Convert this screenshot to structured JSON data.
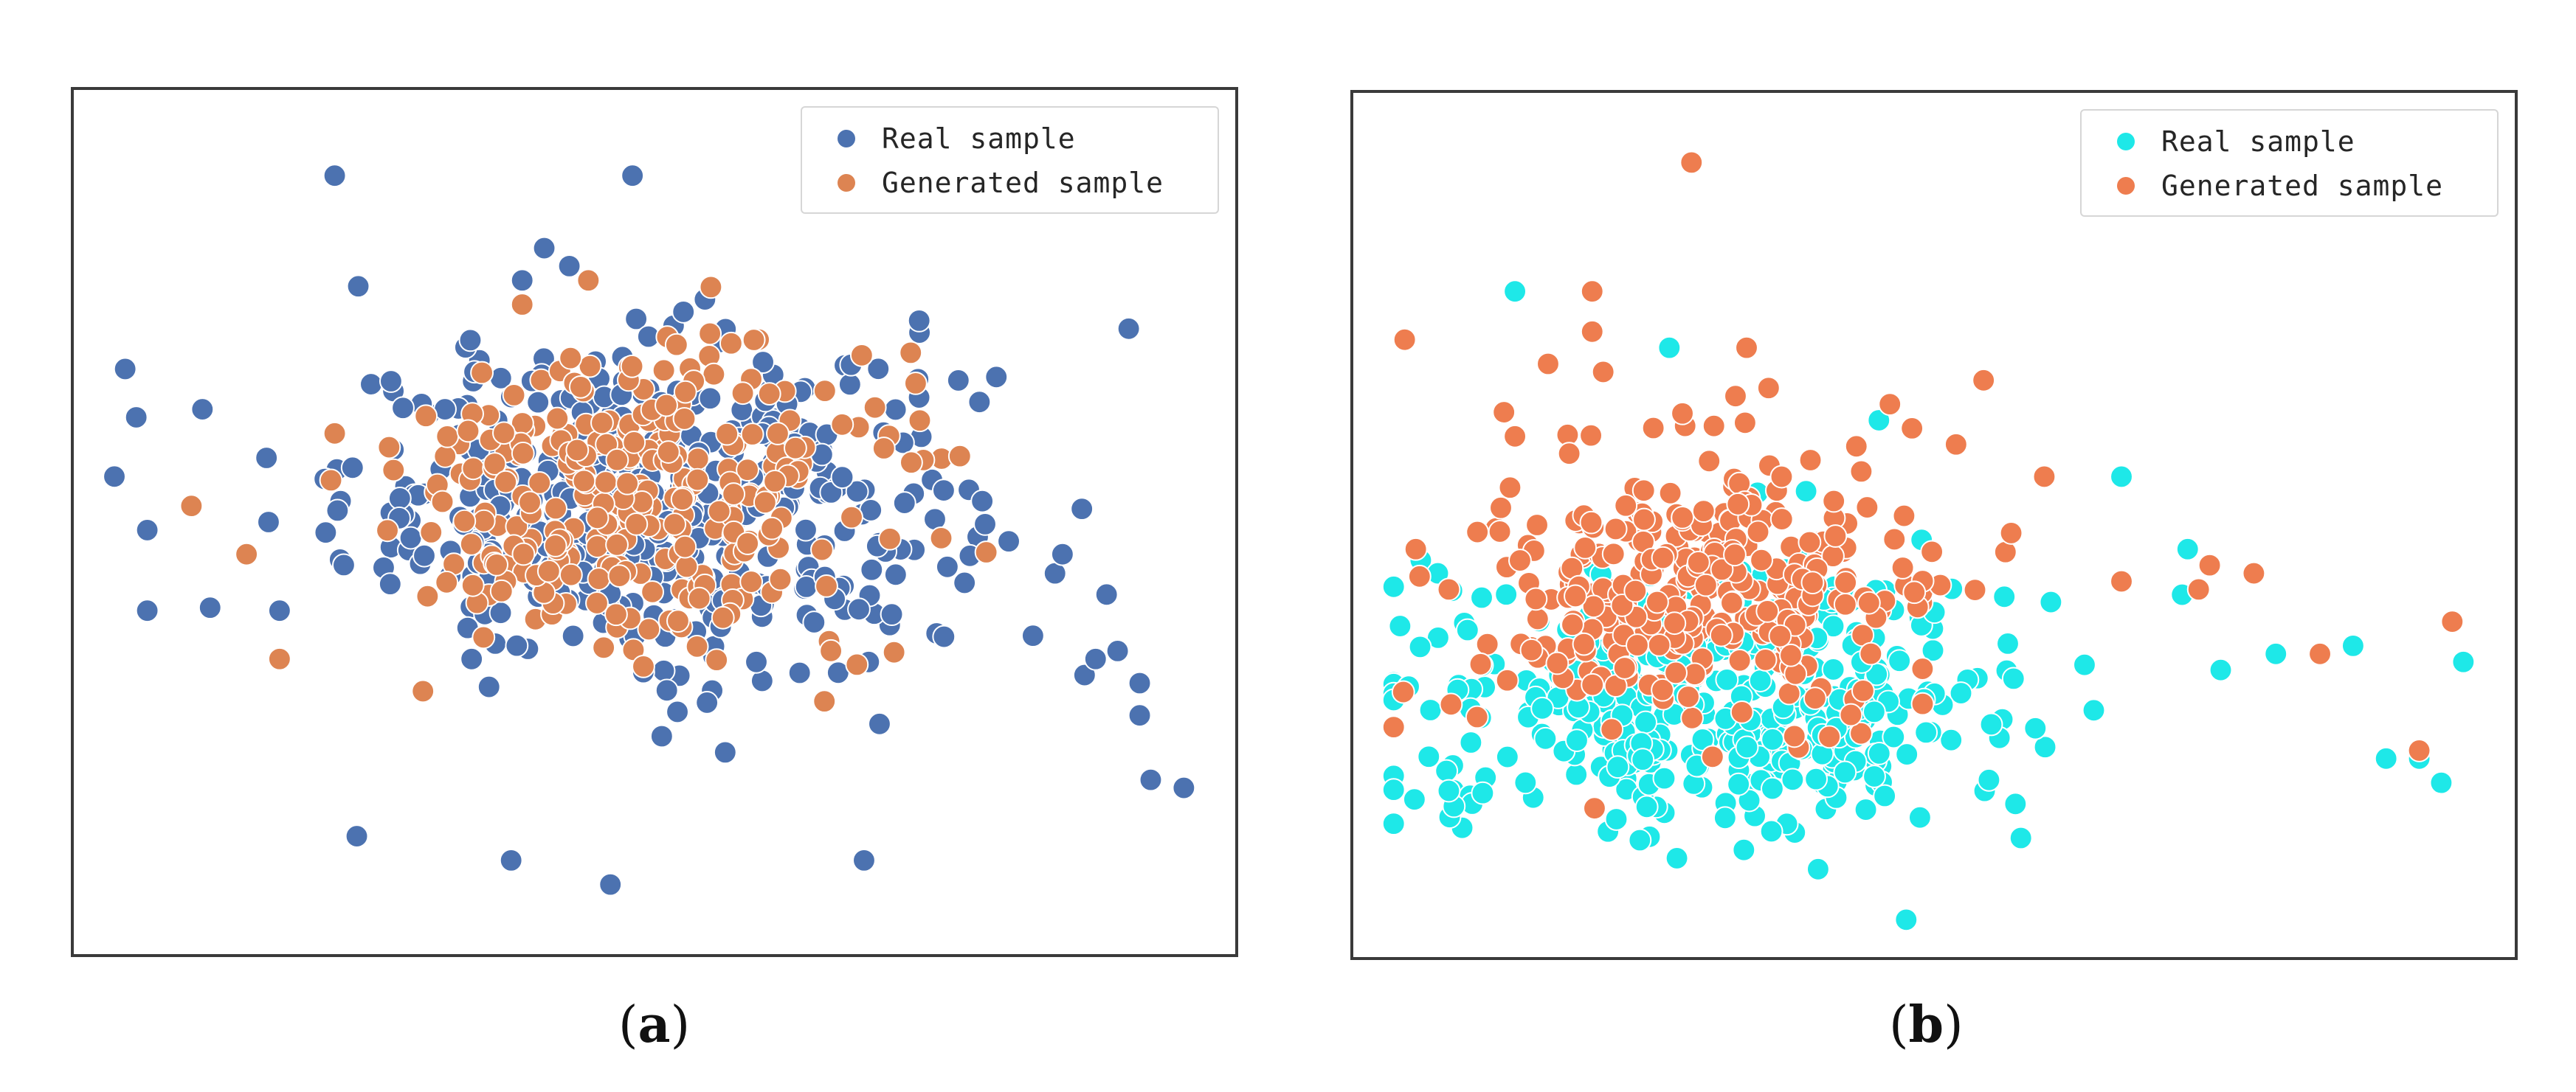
{
  "colors": {
    "a_real": "#4C72B0",
    "a_generated": "#DD8452",
    "b_real": "#1EE8E8",
    "b_generated": "#EE7D4F"
  },
  "chart_data": [
    {
      "type": "scatter",
      "panel_label": "a",
      "caption_open": "(",
      "caption_close": ")",
      "title": "",
      "xlabel": "",
      "ylabel": "",
      "axes_ticks_visible": false,
      "grid": false,
      "legend_position": "top-right",
      "xlim": [
        0,
        100
      ],
      "ylim": [
        0,
        100
      ],
      "series": [
        {
          "name": "Real sample",
          "color_key": "a_real",
          "n": 440,
          "center": [
            50,
            52
          ],
          "spread": [
            14,
            10
          ],
          "outliers": [
            [
              2,
              69
            ],
            [
              3,
              63
            ],
            [
              4,
              49
            ],
            [
              4,
              39
            ],
            [
              9,
              64
            ],
            [
              15,
              50
            ],
            [
              16,
              39
            ],
            [
              21,
              93
            ],
            [
              23,
              11
            ],
            [
              31,
              64
            ],
            [
              37,
              8
            ],
            [
              38,
              80
            ],
            [
              40,
              84
            ],
            [
              46,
              5
            ],
            [
              48,
              93
            ],
            [
              54,
              48
            ],
            [
              56,
              37
            ],
            [
              69,
              8
            ],
            [
              74,
              75
            ],
            [
              81,
              68
            ],
            [
              87,
              46
            ],
            [
              89,
              31
            ],
            [
              90,
              33
            ],
            [
              91,
              41
            ],
            [
              93,
              74
            ],
            [
              94,
              30
            ],
            [
              94,
              26
            ],
            [
              95,
              18
            ],
            [
              98,
              17
            ]
          ]
        },
        {
          "name": "Generated sample",
          "color_key": "a_generated",
          "n": 310,
          "center": [
            48,
            53
          ],
          "spread": [
            11,
            9
          ],
          "outliers": [
            [
              8,
              52
            ],
            [
              13,
              46
            ],
            [
              16,
              33
            ],
            [
              21,
              61
            ],
            [
              29,
              29
            ],
            [
              38,
              77
            ],
            [
              44,
              80
            ],
            [
              52,
              72
            ],
            [
              58,
              66
            ],
            [
              66,
              34
            ],
            [
              76,
              48
            ]
          ]
        }
      ]
    },
    {
      "type": "scatter",
      "panel_label": "b",
      "caption_open": "(",
      "caption_close": ")",
      "title": "",
      "xlabel": "",
      "ylabel": "",
      "axes_ticks_visible": false,
      "grid": false,
      "legend_position": "top-right",
      "xlim": [
        0,
        100
      ],
      "ylim": [
        0,
        100
      ],
      "series": [
        {
          "name": "Real sample",
          "color_key": "b_real",
          "n": 430,
          "center": [
            30,
            28
          ],
          "spread": [
            14,
            8
          ],
          "outliers": [
            [
              6,
              17
            ],
            [
              5,
              44
            ],
            [
              8,
              23
            ],
            [
              12,
              79
            ],
            [
              26,
              72
            ],
            [
              34,
              54
            ],
            [
              45,
              63
            ],
            [
              67,
              56
            ],
            [
              73,
              47
            ],
            [
              76,
              32
            ],
            [
              81,
              34
            ],
            [
              88,
              35
            ],
            [
              91,
              21
            ],
            [
              94,
              21
            ],
            [
              96,
              18
            ],
            [
              98,
              33
            ]
          ]
        },
        {
          "name": "Generated sample",
          "color_key": "b_generated",
          "n": 330,
          "center": [
            28,
            42
          ],
          "spread": [
            10,
            8
          ],
          "outliers": [
            [
              2,
              73
            ],
            [
              3,
              47
            ],
            [
              6,
              42
            ],
            [
              11,
              64
            ],
            [
              12,
              61
            ],
            [
              14,
              50
            ],
            [
              15,
              70
            ],
            [
              19,
              74
            ],
            [
              19,
              79
            ],
            [
              20,
              69
            ],
            [
              28,
              95
            ],
            [
              32,
              66
            ],
            [
              33,
              72
            ],
            [
              35,
              67
            ],
            [
              46,
              65
            ],
            [
              48,
              62
            ],
            [
              52,
              60
            ],
            [
              57,
              49
            ],
            [
              60,
              56
            ],
            [
              67,
              43
            ],
            [
              74,
              42
            ],
            [
              75,
              45
            ],
            [
              79,
              44
            ],
            [
              85,
              34
            ],
            [
              94,
              22
            ],
            [
              97,
              38
            ]
          ]
        }
      ]
    }
  ]
}
